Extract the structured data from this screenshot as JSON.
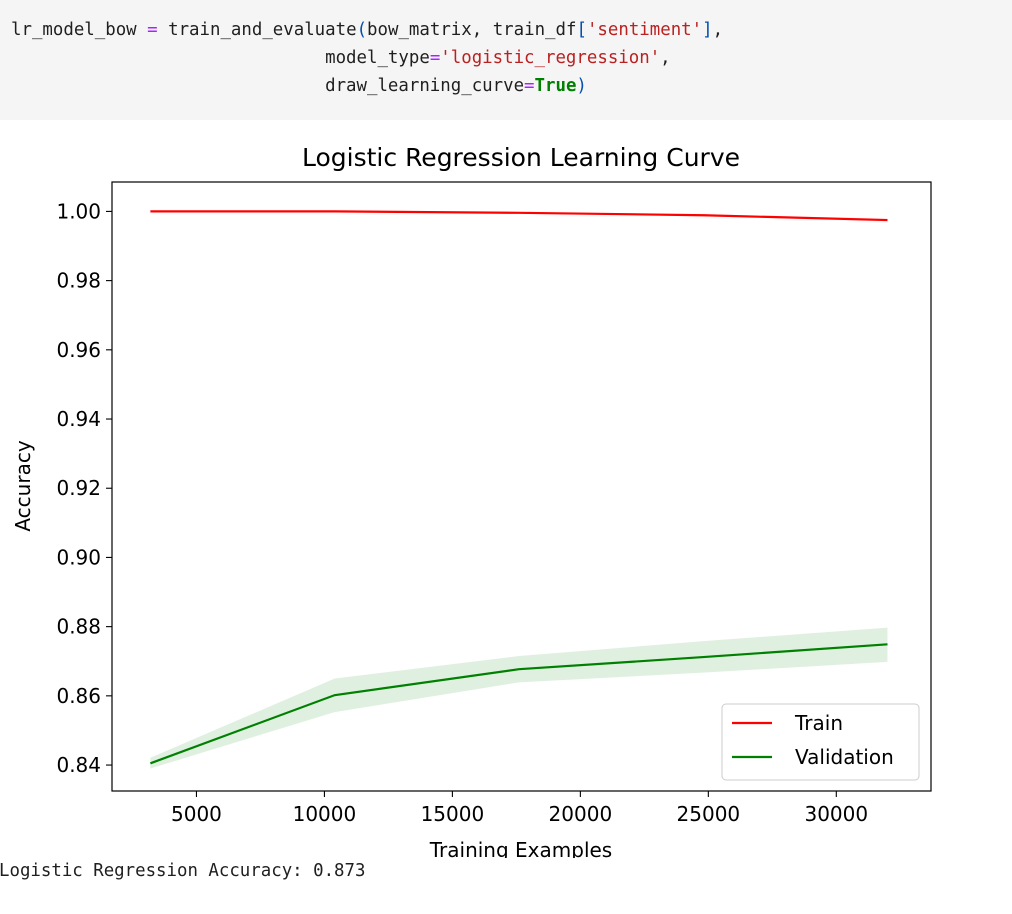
{
  "code_cell": {
    "var": "lr_model_bow",
    "op_eq": "=",
    "func": "train_and_evaluate",
    "arg1": "bow_matrix",
    "arg2_obj": "train_df",
    "arg2_key": "'sentiment'",
    "kw1_name": "model_type",
    "kw1_val": "'logistic_regression'",
    "kw2_name": "draw_learning_curve",
    "kw2_val": "True"
  },
  "output_text": "Logistic Regression Accuracy: 0.873",
  "colors": {
    "train": "#ff0000",
    "validation": "#008000",
    "band": "#008000"
  },
  "chart_data": {
    "type": "line",
    "title": "Logistic Regression Learning Curve",
    "xlabel": "Training Examples",
    "ylabel": "Accuracy",
    "xlim": [
      1700,
      33700
    ],
    "ylim": [
      0.8325,
      1.0085
    ],
    "xticks": [
      5000,
      10000,
      15000,
      20000,
      25000,
      30000
    ],
    "xtick_labels": [
      "5000",
      "10000",
      "15000",
      "20000",
      "25000",
      "30000"
    ],
    "yticks": [
      0.84,
      0.86,
      0.88,
      0.9,
      0.92,
      0.94,
      0.96,
      0.98,
      1.0
    ],
    "ytick_labels": [
      "0.84",
      "0.86",
      "0.88",
      "0.90",
      "0.92",
      "0.94",
      "0.96",
      "0.98",
      "1.00"
    ],
    "grid": false,
    "legend_position": "lower-right",
    "x": [
      3200,
      10400,
      17600,
      24800,
      32000
    ],
    "series": [
      {
        "name": "Train",
        "values": [
          1.0,
          1.0,
          0.9996,
          0.9989,
          0.9975
        ],
        "band_low": [
          1.0,
          1.0,
          0.9994,
          0.9986,
          0.9971
        ],
        "band_high": [
          1.0,
          1.0,
          0.9998,
          0.9992,
          0.9979
        ]
      },
      {
        "name": "Validation",
        "values": [
          0.8405,
          0.8602,
          0.8677,
          0.8712,
          0.8749
        ],
        "band_low": [
          0.839,
          0.8553,
          0.8639,
          0.8667,
          0.8698
        ],
        "band_high": [
          0.8421,
          0.865,
          0.8715,
          0.8758,
          0.8797
        ]
      }
    ]
  }
}
